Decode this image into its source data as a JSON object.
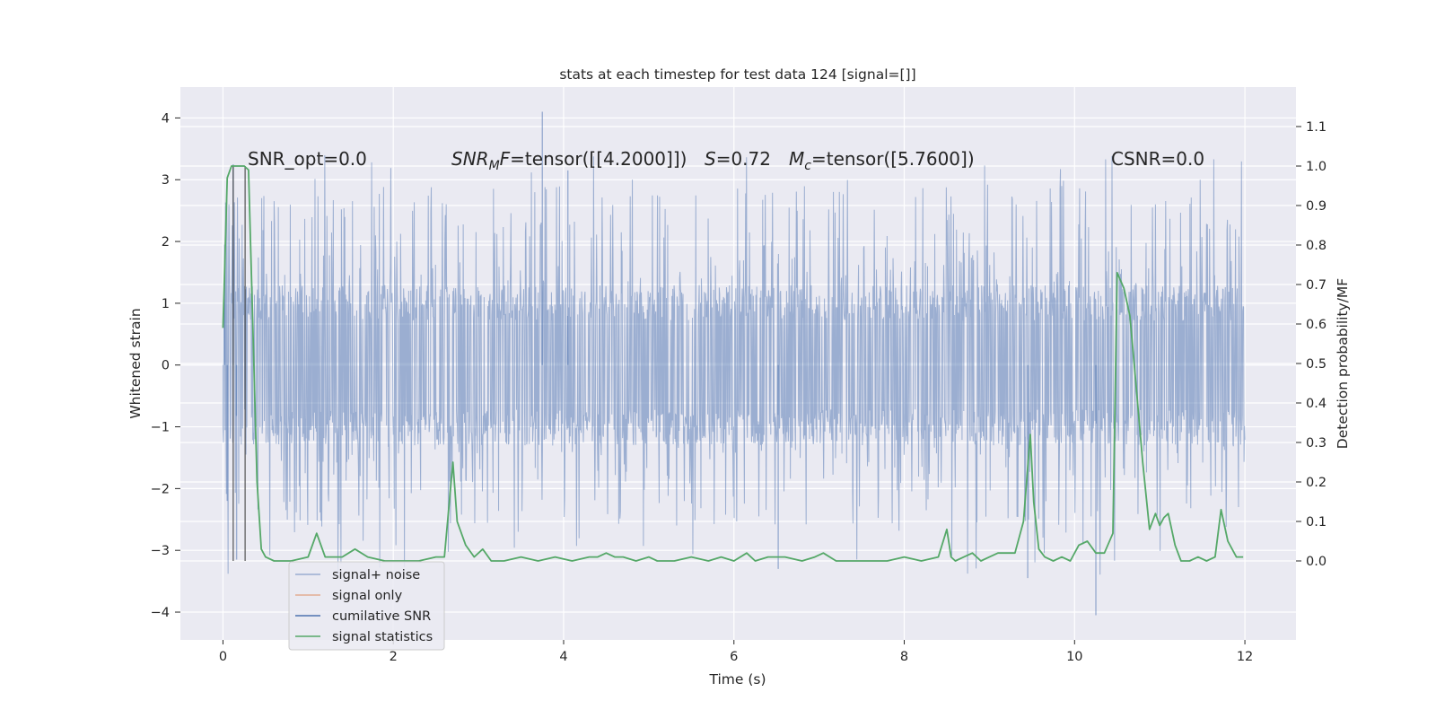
{
  "chart_data": {
    "type": "line",
    "title": "stats at each timestep for test data 124 [signal=[]]",
    "xlabel": "Time (s)",
    "ylabel": "Whitened strain",
    "ylabel_right": "Detection probability/MF",
    "xlim": [
      -0.5,
      12.6
    ],
    "ylim": [
      -4.45,
      4.5
    ],
    "ylim_right": [
      -0.2,
      1.2
    ],
    "x_ticks": [
      0,
      2,
      4,
      6,
      8,
      10,
      12
    ],
    "y_ticks": [
      -4,
      -3,
      -2,
      -1,
      0,
      1,
      2,
      3,
      4
    ],
    "y_right_ticks": [
      0.0,
      0.1,
      0.2,
      0.3,
      0.4,
      0.5,
      0.6,
      0.7,
      0.8,
      0.9,
      1.0,
      1.1
    ],
    "grid": true,
    "legend_position": "lower-left",
    "annotations": {
      "snr_opt": "SNR_opt=0.0",
      "snr_mf_prefix": "SNR",
      "snr_mf_sub": "M",
      "snr_mf_rest": "F=tensor([[4.2000]])",
      "s_var": "S",
      "s_rest": "=0.72",
      "mc_var": "M",
      "mc_sub": "c",
      "mc_rest": "=tensor([5.7600])",
      "csnr": "CSNR=0.0"
    },
    "vlines_x": [
      0.12,
      0.26
    ],
    "series": [
      {
        "name": "signal+ noise",
        "color": "#4c72b0",
        "axis": "left",
        "style": "dense-noise",
        "x_range": [
          0,
          12
        ],
        "core_band": [
          -1.3,
          1.3
        ],
        "typical_peaks": [
          -2.6,
          2.9
        ],
        "extremes": [
          -4.05,
          4.1
        ]
      },
      {
        "name": "signal only",
        "color": "#dd8452",
        "axis": "left",
        "x": [],
        "y": []
      },
      {
        "name": "cumilative SNR",
        "color": "#4c72b0",
        "axis": "right",
        "x": [],
        "y": []
      },
      {
        "name": "signal statistics",
        "color": "#55a868",
        "axis": "right",
        "x": [
          0.0,
          0.05,
          0.1,
          0.15,
          0.2,
          0.25,
          0.3,
          0.35,
          0.4,
          0.45,
          0.5,
          0.6,
          0.8,
          1.0,
          1.1,
          1.2,
          1.4,
          1.55,
          1.7,
          1.9,
          2.1,
          2.3,
          2.5,
          2.6,
          2.7,
          2.75,
          2.85,
          2.95,
          3.05,
          3.15,
          3.3,
          3.5,
          3.7,
          3.9,
          4.1,
          4.3,
          4.4,
          4.5,
          4.6,
          4.7,
          4.85,
          5.0,
          5.1,
          5.3,
          5.5,
          5.7,
          5.85,
          6.0,
          6.15,
          6.25,
          6.4,
          6.6,
          6.8,
          6.95,
          7.05,
          7.2,
          7.4,
          7.6,
          7.8,
          8.0,
          8.2,
          8.4,
          8.5,
          8.55,
          8.6,
          8.7,
          8.8,
          8.9,
          9.0,
          9.1,
          9.2,
          9.3,
          9.4,
          9.48,
          9.52,
          9.58,
          9.65,
          9.75,
          9.85,
          9.95,
          10.05,
          10.15,
          10.25,
          10.35,
          10.45,
          10.5,
          10.58,
          10.65,
          10.72,
          10.8,
          10.88,
          10.95,
          11.0,
          11.05,
          11.1,
          11.18,
          11.25,
          11.35,
          11.45,
          11.55,
          11.65,
          11.72,
          11.8,
          11.9,
          11.98
        ],
        "y": [
          0.59,
          0.97,
          1.0,
          1.0,
          1.0,
          1.0,
          0.99,
          0.6,
          0.2,
          0.03,
          0.01,
          0.0,
          0.0,
          0.01,
          0.07,
          0.01,
          0.01,
          0.03,
          0.01,
          0.0,
          0.0,
          0.0,
          0.01,
          0.01,
          0.25,
          0.1,
          0.04,
          0.01,
          0.03,
          0.0,
          0.0,
          0.01,
          0.0,
          0.01,
          0.0,
          0.01,
          0.01,
          0.02,
          0.01,
          0.01,
          0.0,
          0.01,
          0.0,
          0.0,
          0.01,
          0.0,
          0.01,
          0.0,
          0.02,
          0.0,
          0.01,
          0.01,
          0.0,
          0.01,
          0.02,
          0.0,
          0.0,
          0.0,
          0.0,
          0.01,
          0.0,
          0.01,
          0.08,
          0.01,
          0.0,
          0.01,
          0.02,
          0.0,
          0.01,
          0.02,
          0.02,
          0.02,
          0.1,
          0.32,
          0.15,
          0.03,
          0.01,
          0.0,
          0.01,
          0.0,
          0.04,
          0.05,
          0.02,
          0.02,
          0.07,
          0.73,
          0.69,
          0.62,
          0.45,
          0.25,
          0.08,
          0.12,
          0.09,
          0.11,
          0.12,
          0.04,
          0.0,
          0.0,
          0.01,
          0.0,
          0.01,
          0.13,
          0.05,
          0.01,
          0.01
        ]
      }
    ]
  }
}
